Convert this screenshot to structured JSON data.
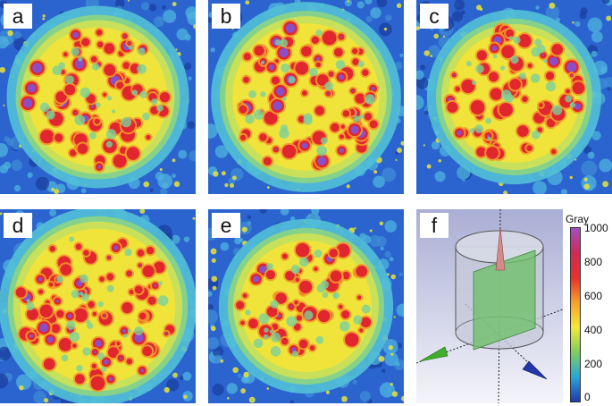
{
  "panels": [
    {
      "label": "a",
      "density": 0.8,
      "radius": 0.42,
      "hot": 0.55,
      "seed": 11
    },
    {
      "label": "b",
      "density": 0.95,
      "radius": 0.44,
      "hot": 0.85,
      "seed": 23
    },
    {
      "label": "c",
      "density": 0.7,
      "radius": 0.4,
      "hot": 0.65,
      "seed": 37
    },
    {
      "label": "d",
      "density": 1.0,
      "radius": 0.46,
      "hot": 0.95,
      "seed": 51
    },
    {
      "label": "e",
      "density": 0.6,
      "radius": 0.4,
      "hot": 0.6,
      "seed": 67
    }
  ],
  "panel_f": {
    "label": "f",
    "colorbar": {
      "title": "Gray",
      "ticks": [
        "1000",
        "800",
        "600",
        "400",
        "200",
        "0"
      ],
      "colors": [
        "#1d3bb0",
        "#2aa6d8",
        "#7ed05a",
        "#f5e838",
        "#f6a02a",
        "#e8302a",
        "#d02a58",
        "#a050c0"
      ]
    }
  }
}
